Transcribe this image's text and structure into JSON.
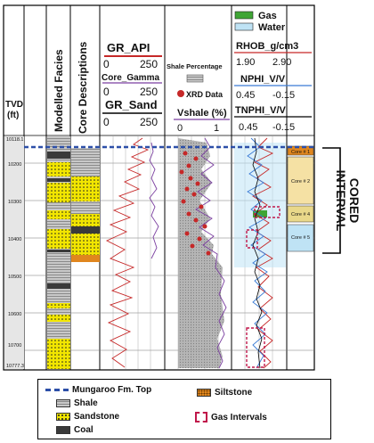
{
  "headers": {
    "tvd": "TVD\n(ft)",
    "tvd_lines": [
      "TVD",
      "(ft)"
    ],
    "facies": "Modelled Facies",
    "core_desc": "Core Descriptions",
    "gr_api": "GR_API",
    "gr_api_range": [
      "0",
      "250"
    ],
    "core_gamma": "Core_Gamma",
    "core_gamma_range": [
      "0",
      "250"
    ],
    "gr_sand": "GR_Sand",
    "gr_sand_range": [
      "0",
      "250"
    ],
    "shale_pct": "Shale Percentage",
    "xrd": "XRD Data",
    "vshale": "Vshale (%)",
    "vshale_range": [
      "0",
      "1"
    ],
    "gas": "Gas",
    "water": "Water",
    "rhob": "RHOB_g/cm3",
    "rhob_range": [
      "1.90",
      "2.90"
    ],
    "nphi": "NPHI_V/V",
    "nphi_range": [
      "0.45",
      "-0.15"
    ],
    "tnphi": "TNPHI_V/V",
    "tnphi_range": [
      "0.45",
      "-0.15"
    ]
  },
  "depth_ticks": [
    "10118.1",
    "10200",
    "10300",
    "10400",
    "10500",
    "10600",
    "10700",
    "10777.3"
  ],
  "cores": [
    "Core # 1",
    "Core # 2",
    "Core # 4",
    "Core # 5"
  ],
  "cored_interval": "CORED\nINTERVAL",
  "cored_interval_lines": [
    "CORED",
    "INTERVAL"
  ],
  "legend": {
    "top": "Mungaroo Fm. Top",
    "shale": "Shale",
    "sandstone": "Sandstone",
    "coal": "Coal",
    "siltstone": "Siltstone",
    "gas_intervals": "Gas Intervals"
  },
  "colors": {
    "gr_api": "#c62828",
    "core_gamma": "#7b3fa0",
    "vshale": "#7b3fa0",
    "rhob": "#c62828",
    "nphi": "#3a7bd5",
    "gas": "#3fa535",
    "water": "#bfe3f5",
    "sand": "#f2e600",
    "core_box": "#f0c040",
    "top_line": "#2c4fa8",
    "gas_interval": "#c0174a"
  }
}
